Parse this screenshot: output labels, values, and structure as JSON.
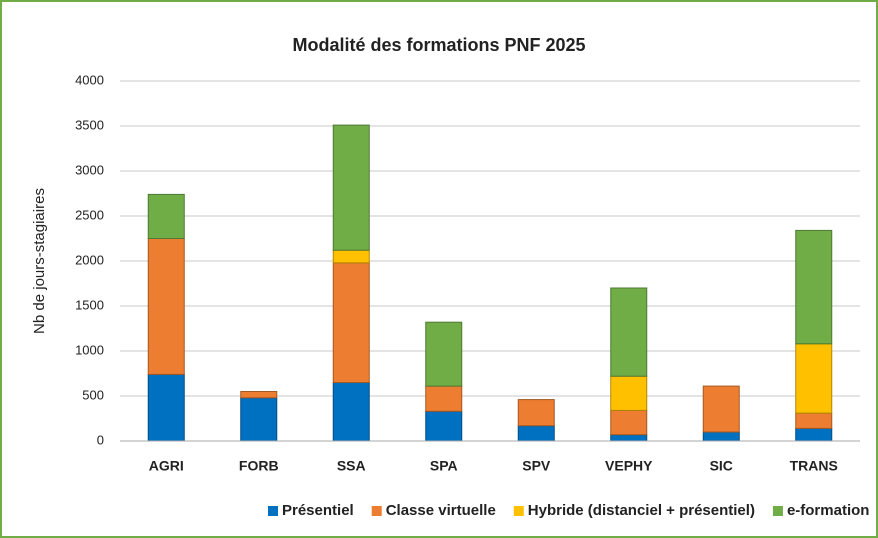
{
  "chart_data": {
    "type": "stacked_bar",
    "title": "Modalité des formations PNF 2025",
    "y_label": "Nb de jours-stagiaires",
    "categories": [
      "AGRI",
      "FORB",
      "SSA",
      "SPA",
      "SPV",
      "VEPHY",
      "SIC",
      "TRANS"
    ],
    "series": [
      {
        "name": "Présentiel",
        "color": "#0070c0",
        "values": [
          740,
          480,
          650,
          330,
          170,
          70,
          100,
          140
        ]
      },
      {
        "name": "Classe virtuelle",
        "color": "#ed7d31",
        "values": [
          1510,
          70,
          1330,
          280,
          290,
          270,
          510,
          170
        ]
      },
      {
        "name": "Hybride (distanciel + présentiel)",
        "color": "#ffc000",
        "values": [
          0,
          0,
          140,
          0,
          0,
          380,
          0,
          770
        ]
      },
      {
        "name": "e-formation",
        "color": "#70ad47",
        "values": [
          490,
          0,
          1390,
          710,
          0,
          980,
          0,
          1260
        ]
      }
    ],
    "ylim": [
      0,
      4000
    ],
    "yticks": [
      0,
      500,
      1000,
      1500,
      2000,
      2500,
      3000,
      3500,
      4000
    ],
    "grid": true,
    "legend": "bottom"
  }
}
